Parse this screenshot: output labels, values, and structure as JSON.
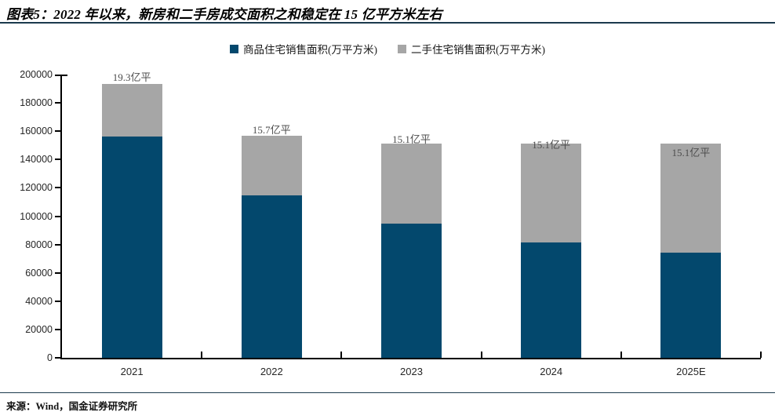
{
  "figure": {
    "title": "图表5：2022 年以来，新房和二手房成交面积之和稳定在 15 亿平方米左右",
    "source": "来源：Wind，国金证券研究所"
  },
  "colors": {
    "primary_blue": "#03486D",
    "secondary_gray": "#A6A6A6",
    "rule_navy": "#1B3A4D",
    "axis": "#000000",
    "data_label": "#4D4D4D"
  },
  "chart_data": {
    "type": "bar",
    "stacked": true,
    "unit": "万平方米",
    "categories": [
      "2021",
      "2022",
      "2023",
      "2024",
      "2025E"
    ],
    "series": [
      {
        "name": "商品住宅销售面积(万平方米)",
        "color": "#03486D",
        "values": [
          156500,
          114600,
          94800,
          81400,
          74200
        ]
      },
      {
        "name": "二手住宅销售面积(万平方米)",
        "color": "#A6A6A6",
        "values": [
          36900,
          42400,
          56200,
          69800,
          77000
        ]
      }
    ],
    "total_labels": [
      "19.3亿平",
      "15.7亿平",
      "15.1亿平",
      "15.1亿平",
      "15.1亿平"
    ],
    "label_dy": [
      -16,
      -15,
      -13,
      -6,
      4
    ],
    "ylim": [
      0,
      200000
    ],
    "ytick_step": 20000,
    "grid": false,
    "legend_position": "top"
  }
}
